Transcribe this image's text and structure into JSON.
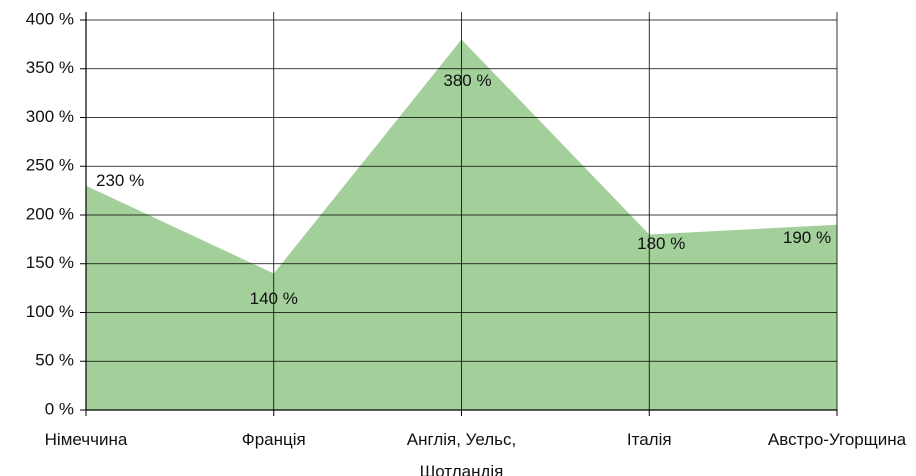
{
  "chart_data": {
    "type": "area",
    "categories": [
      "Німеччина",
      "Франція",
      "Англія, Уельс, Шотландія",
      "Італія",
      "Австро-Угорщина"
    ],
    "values": [
      230,
      140,
      380,
      180,
      190
    ],
    "value_labels": [
      "230 %",
      "140 %",
      "380 %",
      "180 %",
      "190 %"
    ],
    "color": "#a3cf9a",
    "ylim": [
      0,
      400
    ],
    "yticks": [
      {
        "value": 0,
        "label": "0 %"
      },
      {
        "value": 50,
        "label": "50 %"
      },
      {
        "value": 100,
        "label": "100 %"
      },
      {
        "value": 150,
        "label": "150 %"
      },
      {
        "value": 200,
        "label": "200 %"
      },
      {
        "value": 250,
        "label": "250 %"
      },
      {
        "value": 300,
        "label": "300 %"
      },
      {
        "value": 350,
        "label": "350 %"
      },
      {
        "value": 400,
        "label": "400 %"
      }
    ],
    "grid": true
  }
}
